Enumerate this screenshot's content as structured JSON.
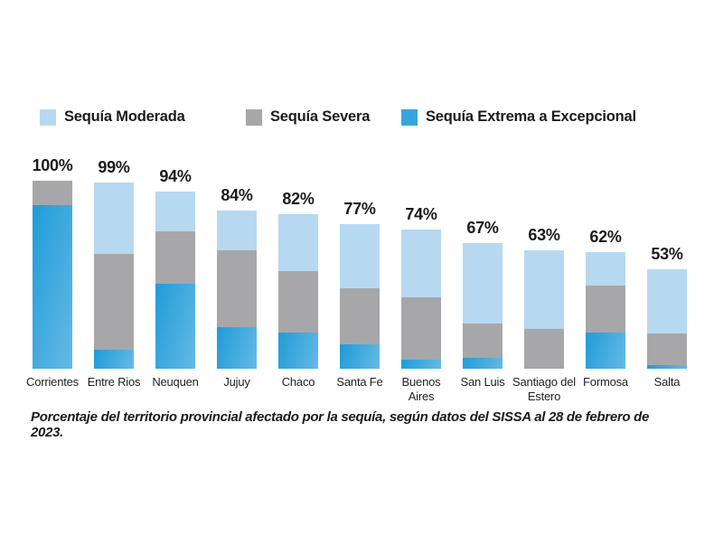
{
  "legend": {
    "items": [
      {
        "label": "Sequía Moderada",
        "color": "#b7d8f1"
      },
      {
        "label": "Sequía Severa",
        "color": "#a7a7a9"
      },
      {
        "label": "Sequía Extrema a Excepcional",
        "color": "#35a6dd"
      }
    ]
  },
  "caption": "Porcentaje del territorio provincial afectado por la sequía, según datos del SISSA al 28 de febrero de 2023.",
  "chart_data": {
    "type": "bar",
    "stacked": true,
    "unit": "%",
    "title": "",
    "xlabel": "",
    "ylabel": "",
    "ylim": [
      0,
      100
    ],
    "grid": false,
    "legend_position": "top",
    "categories": [
      "Corrientes",
      "Entre Rios",
      "Neuquen",
      "Jujuy",
      "Chaco",
      "Santa Fe",
      "Buenos Aires",
      "San Luis",
      "Santiago del Estero",
      "Formosa",
      "Salta"
    ],
    "totals": [
      100,
      99,
      94,
      84,
      82,
      77,
      74,
      67,
      63,
      62,
      53
    ],
    "total_labels": [
      "100%",
      "99%",
      "94%",
      "84%",
      "82%",
      "77%",
      "74%",
      "67%",
      "63%",
      "62%",
      "53%"
    ],
    "series": [
      {
        "name": "Sequía Moderada",
        "color": "#b7d8f1",
        "values": [
          0,
          38,
          21,
          21,
          30,
          34,
          36,
          43,
          42,
          18,
          34
        ]
      },
      {
        "name": "Sequía Severa",
        "color": "#a7a7a9",
        "values": [
          13,
          51,
          28,
          41,
          33,
          30,
          33,
          18,
          21,
          25,
          17
        ]
      },
      {
        "name": "Sequía Extrema a Excepcional",
        "color": "#2ba2db",
        "gradient": [
          "#1f9cd8",
          "#65b9e6"
        ],
        "values": [
          87,
          10,
          45,
          22,
          19,
          13,
          5,
          6,
          0,
          19,
          2
        ]
      }
    ]
  }
}
